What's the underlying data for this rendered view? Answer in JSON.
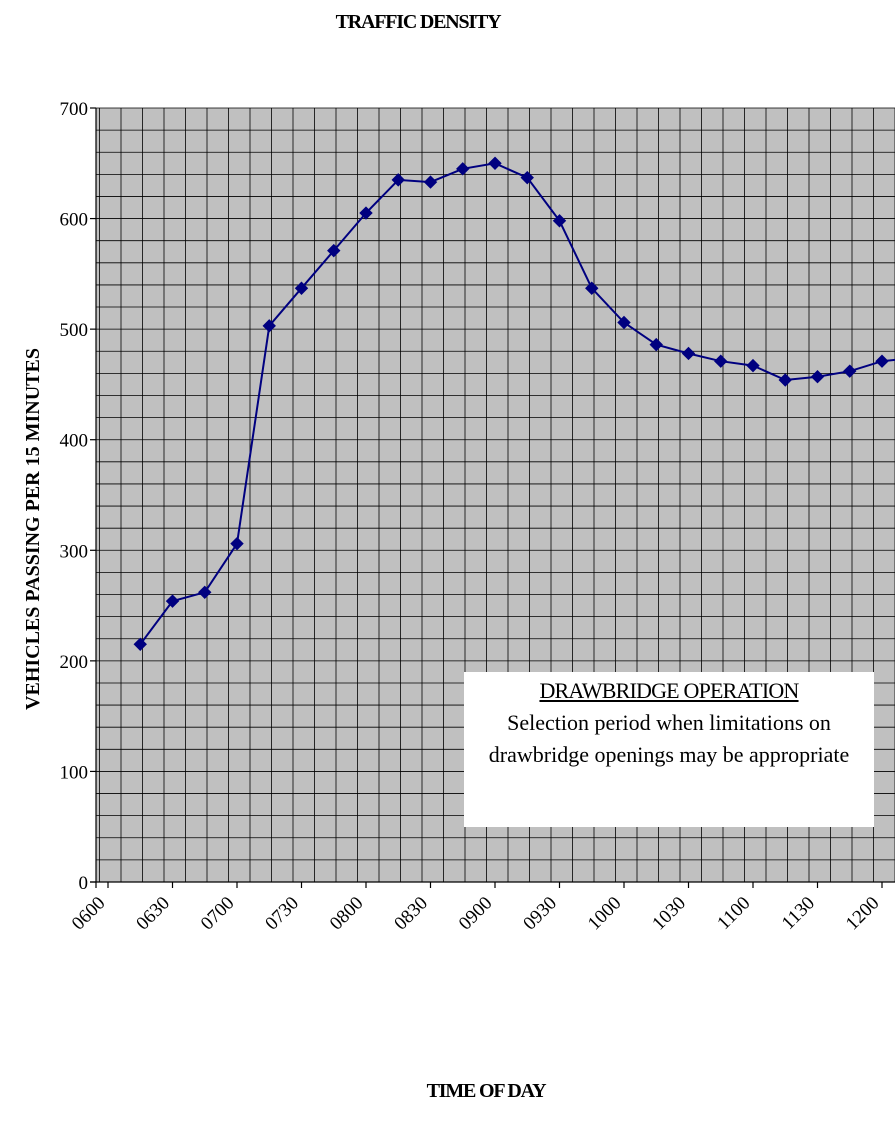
{
  "chart_data": {
    "type": "line",
    "title": "TRAFFIC DENSITY",
    "xlabel": "TIME OF DAY",
    "ylabel": "VEHICLES PASSING PER 15 MINUTES",
    "ylim": [
      0,
      700
    ],
    "y_ticks": [
      0,
      100,
      200,
      300,
      400,
      500,
      600,
      700
    ],
    "x_tick_labels": [
      "0600",
      "0630",
      "0700",
      "0730",
      "0800",
      "0830",
      "0900",
      "0930",
      "1000",
      "1030",
      "1100",
      "1130",
      "1200"
    ],
    "grid": true,
    "series": [
      {
        "color": "#000080",
        "marker": "diamond",
        "x": [
          "0615",
          "0630",
          "0645",
          "0700",
          "0715",
          "0730",
          "0745",
          "0800",
          "0815",
          "0830",
          "0845",
          "0900",
          "0915",
          "0930",
          "0945",
          "1000",
          "1015",
          "1030",
          "1045",
          "1100",
          "1115",
          "1130",
          "1145",
          "1200",
          "1215"
        ],
        "values": [
          215,
          254,
          262,
          306,
          503,
          537,
          571,
          605,
          635,
          633,
          645,
          650,
          637,
          598,
          537,
          506,
          486,
          478,
          471,
          467,
          454,
          457,
          462,
          471,
          474
        ]
      }
    ],
    "annotation": {
      "title": "DRAWBRIDGE OPERATION",
      "text": "Selection period when limitations on drawbridge openings may be appropriate"
    },
    "colors": {
      "plot_background": "#c0c0c0",
      "grid": "#000000",
      "line": "#000080"
    }
  }
}
